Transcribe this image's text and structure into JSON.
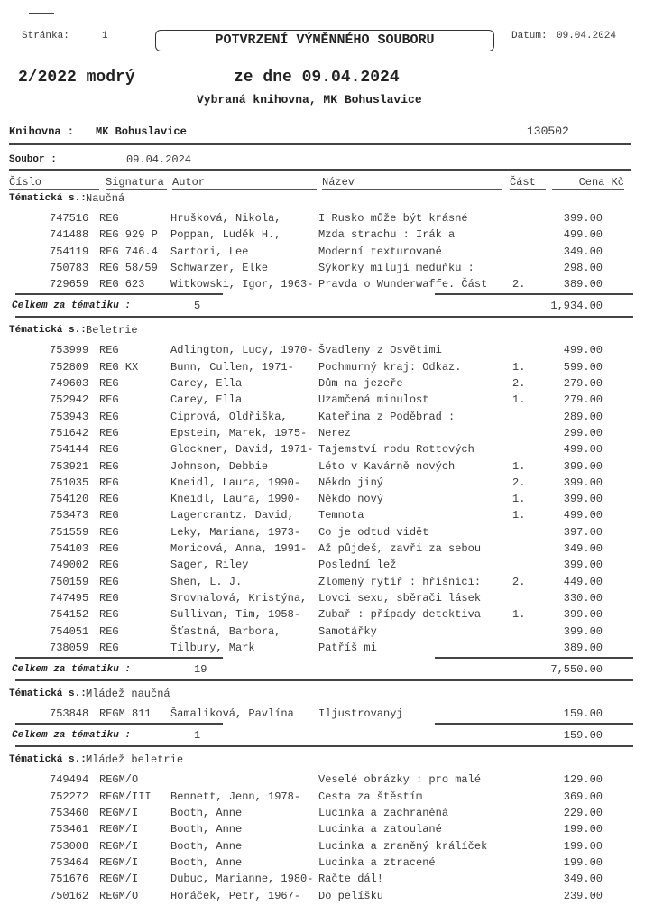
{
  "header": {
    "page_label": "Stránka:",
    "page_number": "1",
    "title": "POTVRZENÍ VÝMĚNNÉHO SOUBORU",
    "date_label": "Datum:",
    "date": "09.04.2024",
    "set_name": "2/2022 modrý",
    "set_date": "ze dne 09.04.2024",
    "subtitle": "Vybraná knihovna, MK Bohuslavice",
    "library_label": "Knihovna :",
    "library_name": "MK Bohuslavice",
    "library_code": "130502",
    "file_label": "Soubor :",
    "file_value": "09.04.2024"
  },
  "columns": {
    "cislo": "Číslo",
    "signatura": "Signatura",
    "autor": "Autor",
    "nazev": "Název",
    "cast": "Část",
    "cena": "Cena Kč"
  },
  "section_label": "Tématická s.:",
  "total_label": "Celkem za tématiku :",
  "sections": [
    {
      "name": "Naučná",
      "count": "5",
      "total": "1,934.00",
      "rows": [
        [
          "747516",
          "REG",
          "Hrušková, Nikola,",
          "I Rusko může být krásné",
          "",
          "399.00"
        ],
        [
          "741488",
          "REG 929 P",
          "Poppan, Luděk H.,",
          "Mzda strachu : Irák a",
          "",
          "499.00"
        ],
        [
          "754119",
          "REG 746.4",
          "Sartori, Lee",
          "Moderní texturované",
          "",
          "349.00"
        ],
        [
          "750783",
          "REG 58/59",
          "Schwarzer, Elke",
          "Sýkorky milují meduňku :",
          "",
          "298.00"
        ],
        [
          "729659",
          "REG 623",
          "Witkowski, Igor, 1963-",
          "Pravda o Wunderwaffe. Část",
          "2.",
          "389.00"
        ]
      ]
    },
    {
      "name": "Beletrie",
      "count": "19",
      "total": "7,550.00",
      "rows": [
        [
          "753999",
          "REG",
          "Adlington, Lucy, 1970-",
          "Švadleny z Osvětimi",
          "",
          "499.00"
        ],
        [
          "752809",
          "REG KX",
          "Bunn, Cullen, 1971-",
          "Pochmurný kraj: Odkaz.",
          "1.",
          "599.00"
        ],
        [
          "749603",
          "REG",
          "Carey, Ella",
          "Dům na jezeře",
          "2.",
          "279.00"
        ],
        [
          "752942",
          "REG",
          "Carey, Ella",
          "Uzamčená minulost",
          "1.",
          "279.00"
        ],
        [
          "753943",
          "REG",
          "Ciprová, Oldřiška,",
          "Kateřina z Poděbrad :",
          "",
          "289.00"
        ],
        [
          "751642",
          "REG",
          "Epstein, Marek, 1975-",
          "Nerez",
          "",
          "299.00"
        ],
        [
          "754144",
          "REG",
          "Glockner, David, 1971-",
          "Tajemství rodu Rottových",
          "",
          "499.00"
        ],
        [
          "753921",
          "REG",
          "Johnson, Debbie",
          "Léto v Kavárně nových",
          "1.",
          "399.00"
        ],
        [
          "751035",
          "REG",
          "Kneidl, Laura, 1990-",
          "Někdo jiný",
          "2.",
          "399.00"
        ],
        [
          "754120",
          "REG",
          "Kneidl, Laura, 1990-",
          "Někdo nový",
          "1.",
          "399.00"
        ],
        [
          "753473",
          "REG",
          "Lagercrantz, David,",
          "Temnota",
          "1.",
          "499.00"
        ],
        [
          "751559",
          "REG",
          "Leky, Mariana, 1973-",
          "Co je odtud vidět",
          "",
          "397.00"
        ],
        [
          "754103",
          "REG",
          "Moricová, Anna, 1991-",
          "Až půjdeš, zavři za sebou",
          "",
          "349.00"
        ],
        [
          "749002",
          "REG",
          "Sager, Riley",
          "Poslední lež",
          "",
          "399.00"
        ],
        [
          "750159",
          "REG",
          "Shen, L. J.",
          "Zlomený rytíř : hříšníci:",
          "2.",
          "449.00"
        ],
        [
          "747495",
          "REG",
          "Srovnalová, Kristýna,",
          "Lovci sexu, sběrači lásek",
          "",
          "330.00"
        ],
        [
          "754152",
          "REG",
          "Sullivan, Tim, 1958-",
          "Zubař : případy detektiva",
          "1.",
          "399.00"
        ],
        [
          "754051",
          "REG",
          "Šťastná, Barbora,",
          "Samotářky",
          "",
          "399.00"
        ],
        [
          "738059",
          "REG",
          "Tilbury, Mark",
          "Patříš mi",
          "",
          "389.00"
        ]
      ]
    },
    {
      "name": "Mládež naučná",
      "count": "1",
      "total": "159.00",
      "rows": [
        [
          "753848",
          "REGM 811",
          "Šamaliková, Pavlína",
          "Iljustrovanyj",
          "",
          "159.00"
        ]
      ]
    },
    {
      "name": "Mládež beletrie",
      "rows": [
        [
          "749494",
          "REGM/O",
          "",
          "Veselé obrázky : pro malé",
          "",
          "129.00"
        ],
        [
          "752272",
          "REGM/III",
          "Bennett, Jenn, 1978-",
          "Cesta za štěstím",
          "",
          "369.00"
        ],
        [
          "753460",
          "REGM/I",
          "Booth, Anne",
          "Lucinka a zachráněná",
          "",
          "229.00"
        ],
        [
          "753461",
          "REGM/I",
          "Booth, Anne",
          "Lucinka a zatoulané",
          "",
          "199.00"
        ],
        [
          "753008",
          "REGM/I",
          "Booth, Anne",
          "Lucinka a zraněný králíček",
          "",
          "199.00"
        ],
        [
          "753464",
          "REGM/I",
          "Booth, Anne",
          "Lucinka a ztracené",
          "",
          "199.00"
        ],
        [
          "751676",
          "REGM/I",
          "Dubuc, Marianne, 1980-",
          "Račte dál!",
          "",
          "349.00"
        ],
        [
          "750162",
          "REGM/O",
          "Horáček, Petr, 1967-",
          "Do pelíšku",
          "",
          "239.00"
        ]
      ]
    }
  ]
}
